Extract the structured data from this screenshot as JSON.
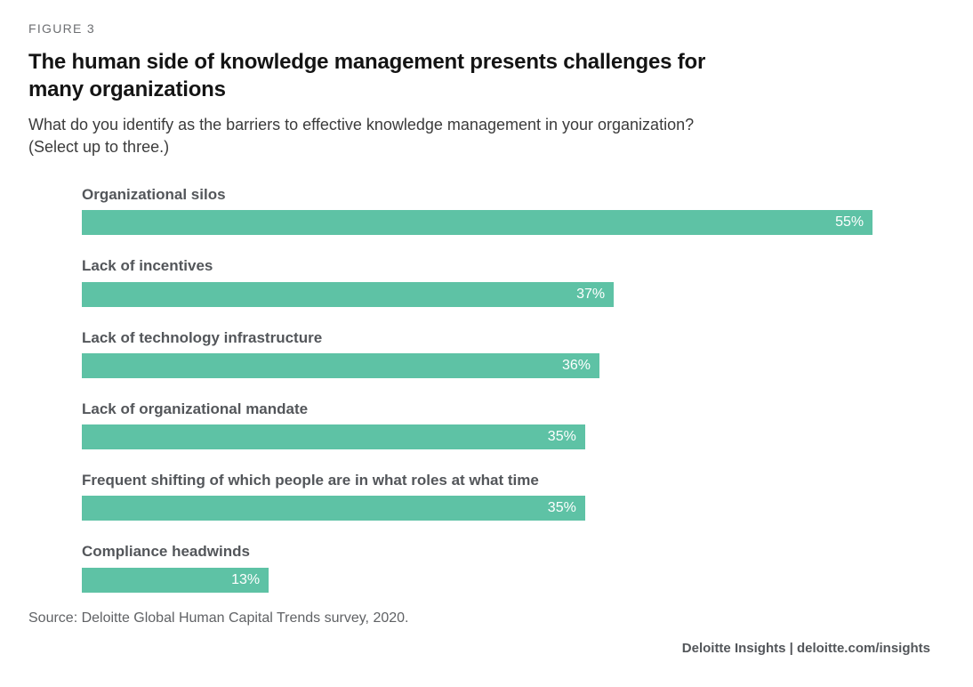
{
  "figure_label": "FIGURE 3",
  "title": {
    "line1": "The human side of knowledge management presents challenges for",
    "line2": "many organizations"
  },
  "subtitle": {
    "line1": "What do you identify as the barriers to effective knowledge management in your organization?",
    "line2": "(Select up to three.)"
  },
  "chart_data": {
    "type": "bar",
    "orientation": "horizontal",
    "title": "The human side of knowledge management presents challenges for many organizations",
    "question": "What do you identify as the barriers to effective knowledge management in your organization? (Select up to three.)",
    "categories": [
      "Organizational silos",
      "Lack of incentives",
      "Lack of technology infrastructure",
      "Lack of organizational mandate",
      "Frequent shifting of which people are in what roles at what time",
      "Compliance headwinds"
    ],
    "values": [
      55,
      37,
      36,
      35,
      35,
      13
    ],
    "value_suffix": "%",
    "value_labels": [
      "55%",
      "37%",
      "36%",
      "35%",
      "35%",
      "13%"
    ],
    "xlim": [
      0,
      60
    ],
    "bar_color": "#5ec2a5",
    "value_label_color": "#ffffff",
    "grid": false,
    "legend": false
  },
  "source": "Source: Deloitte Global Human Capital Trends survey, 2020.",
  "footer": "Deloitte Insights | deloitte.com/insights"
}
